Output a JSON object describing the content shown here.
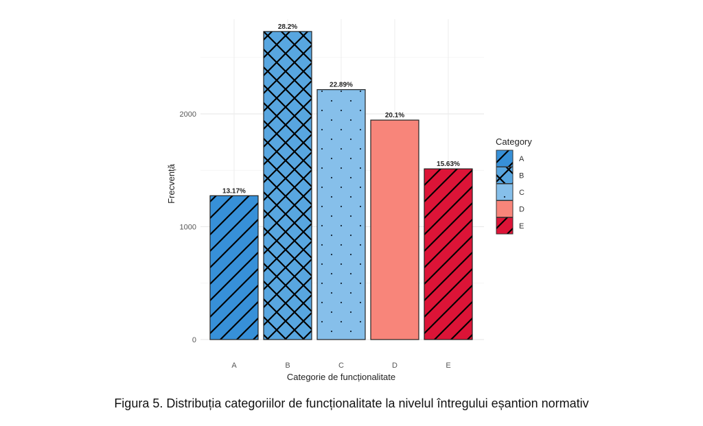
{
  "chart_data": {
    "type": "bar",
    "title": "",
    "xlabel": "Categorie de funcționalitate",
    "ylabel": "Frecvență",
    "categories": [
      "A",
      "B",
      "C",
      "D",
      "E"
    ],
    "values": [
      1275,
      2730,
      2215,
      1945,
      1513
    ],
    "data_labels": [
      "13.17%",
      "28.2%",
      "22.89%",
      "20.1%",
      "15.63%"
    ],
    "patterns": [
      "stripe",
      "crosshatch",
      "dots",
      "none",
      "stripe"
    ],
    "colors": [
      "#3790d8",
      "#58a6e0",
      "#86bfea",
      "#f8857a",
      "#dc1437"
    ],
    "ylim": [
      0,
      2800
    ],
    "yticks": [
      0,
      1000,
      2000
    ],
    "grid": true,
    "legend": {
      "title": "Category",
      "entries": [
        "A",
        "B",
        "C",
        "D",
        "E"
      ],
      "placement": "right"
    }
  },
  "caption": "Figura 5. Distribuția categoriilor de funcționalitate la nivelul întregului eșantion normativ"
}
